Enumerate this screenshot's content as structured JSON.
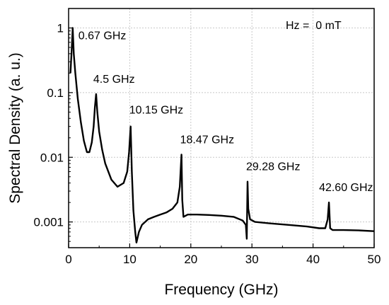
{
  "chart_data": {
    "type": "line",
    "xlabel": "Frequency (GHz)",
    "ylabel": "Spectral Density (a. u.)",
    "xlim": [
      0,
      50
    ],
    "ylim": [
      0.0004,
      2
    ],
    "yscale": "log",
    "grid": true,
    "xticks": [
      0,
      10,
      20,
      30,
      40,
      50
    ],
    "yticks": [
      {
        "value": 0.001,
        "label": "0.001"
      },
      {
        "value": 0.01,
        "label": "0.01"
      },
      {
        "value": 0.1,
        "label": "0.1"
      },
      {
        "value": 1,
        "label": "1"
      }
    ],
    "field_label": "Hz =  0 mT",
    "peaks": [
      {
        "x": 0.67,
        "y": 1.0,
        "label": "0.67 GHz"
      },
      {
        "x": 4.5,
        "y": 0.095,
        "label": "4.5 GHz"
      },
      {
        "x": 10.15,
        "y": 0.03,
        "label": "10.15 GHz"
      },
      {
        "x": 18.47,
        "y": 0.011,
        "label": "18.47 GHz"
      },
      {
        "x": 29.28,
        "y": 0.0042,
        "label": "29.28 GHz"
      },
      {
        "x": 42.6,
        "y": 0.002,
        "label": "42.60 GHz"
      }
    ],
    "series": [
      {
        "color": "#000000",
        "x": [
          0.3,
          0.5,
          0.67,
          0.85,
          1.1,
          1.5,
          2.0,
          2.5,
          3.0,
          3.4,
          3.8,
          4.1,
          4.3,
          4.5,
          4.7,
          5.0,
          5.5,
          6.0,
          7.0,
          8.0,
          9.0,
          9.6,
          9.9,
          10.15,
          10.35,
          10.6,
          10.9,
          11.1,
          11.5,
          12.0,
          13.0,
          14.0,
          15.0,
          16.0,
          17.0,
          17.8,
          18.2,
          18.47,
          18.6,
          18.8,
          19.5,
          21.0,
          23.0,
          25.0,
          27.0,
          28.5,
          29.0,
          29.15,
          29.28,
          29.4,
          29.7,
          30.5,
          33.0,
          36.0,
          39.0,
          41.0,
          42.0,
          42.4,
          42.6,
          42.8,
          43.2,
          45.0,
          47.5,
          50.0
        ],
        "y": [
          0.2,
          0.45,
          1.0,
          0.4,
          0.2,
          0.08,
          0.035,
          0.018,
          0.012,
          0.012,
          0.017,
          0.03,
          0.06,
          0.095,
          0.05,
          0.025,
          0.013,
          0.008,
          0.0045,
          0.0035,
          0.004,
          0.006,
          0.012,
          0.03,
          0.006,
          0.0015,
          0.0007,
          0.00048,
          0.0007,
          0.0009,
          0.0011,
          0.0012,
          0.0013,
          0.0014,
          0.0016,
          0.002,
          0.0035,
          0.011,
          0.0022,
          0.0012,
          0.0013,
          0.0013,
          0.00128,
          0.00125,
          0.0012,
          0.00105,
          0.0009,
          0.00055,
          0.0042,
          0.0016,
          0.0011,
          0.001,
          0.00095,
          0.0009,
          0.00085,
          0.0008,
          0.0008,
          0.0011,
          0.002,
          0.0008,
          0.00075,
          0.00075,
          0.00074,
          0.00072
        ]
      }
    ]
  }
}
